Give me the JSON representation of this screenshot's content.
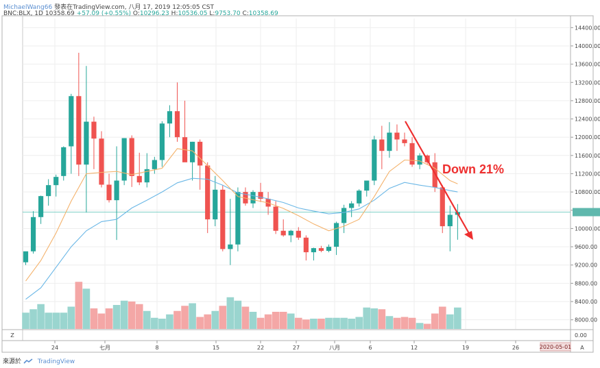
{
  "header": {
    "author": "MichaelWang66",
    "published": "發表在TradingView.com, 八月 17, 2019 12:05:05 CST",
    "symbol": "BNC:BLX, 1D",
    "last": "10358.69",
    "change": "+57.09 (+0.55%)",
    "ohlc": {
      "o_label": "O:",
      "o": "10296.23",
      "h_label": "H:",
      "h": "10536.05",
      "l_label": "L:",
      "l": "9753.70",
      "c_label": "C:",
      "c": "10358.69"
    }
  },
  "annotation": {
    "text": "Down 21%",
    "color": "#ee2f2f"
  },
  "footer": {
    "source_label": "來源於",
    "brand": "TradingView"
  },
  "axis": {
    "date_marker": "2020-05-01",
    "auto_button": "A",
    "zoom_button": "Z",
    "volume_zero": "0.00"
  },
  "colors": {
    "up": "#26a69a",
    "down": "#ef5350",
    "ma_fast": "#f4b26b",
    "ma_slow": "#6ab7e6",
    "price_line": "#7fd1c7"
  },
  "chart_data": {
    "type": "candlestick",
    "ylim": [
      7800,
      14600
    ],
    "y_ticks": [
      "8000.00",
      "8400.00",
      "8800.00",
      "9200.00",
      "9600.00",
      "10000.00",
      "10400.00",
      "10800.00",
      "11200.00",
      "11600.00",
      "12000.00",
      "12400.00",
      "12800.00",
      "13200.00",
      "13600.00",
      "14000.00",
      "14400.00"
    ],
    "x_ticks": [
      "24",
      "七月",
      "8",
      "15",
      "22",
      "27",
      "八月",
      "6",
      "12",
      "19",
      "26"
    ],
    "candles": [
      {
        "o": 9260,
        "h": 9460,
        "l": 9200,
        "c": 9500
      },
      {
        "o": 9500,
        "h": 10380,
        "l": 9450,
        "c": 10250
      },
      {
        "o": 10250,
        "h": 10720,
        "l": 10100,
        "c": 10710
      },
      {
        "o": 10710,
        "h": 11080,
        "l": 10500,
        "c": 10950
      },
      {
        "o": 10950,
        "h": 11180,
        "l": 10700,
        "c": 11130
      },
      {
        "o": 11150,
        "h": 11800,
        "l": 11050,
        "c": 11780
      },
      {
        "o": 11800,
        "h": 12950,
        "l": 11200,
        "c": 12900
      },
      {
        "o": 12900,
        "h": 13850,
        "l": 11150,
        "c": 11400
      },
      {
        "o": 11400,
        "h": 13560,
        "l": 10350,
        "c": 12340
      },
      {
        "o": 12340,
        "h": 12450,
        "l": 11300,
        "c": 11970
      },
      {
        "o": 11970,
        "h": 12130,
        "l": 10900,
        "c": 10960
      },
      {
        "o": 10960,
        "h": 11200,
        "l": 10570,
        "c": 10620
      },
      {
        "o": 10620,
        "h": 11800,
        "l": 9750,
        "c": 11050
      },
      {
        "o": 11050,
        "h": 11980,
        "l": 10950,
        "c": 11980
      },
      {
        "o": 11980,
        "h": 12040,
        "l": 10910,
        "c": 11150
      },
      {
        "o": 11150,
        "h": 11660,
        "l": 10950,
        "c": 11010
      },
      {
        "o": 11010,
        "h": 11650,
        "l": 10900,
        "c": 11300
      },
      {
        "o": 11300,
        "h": 11570,
        "l": 11200,
        "c": 11500
      },
      {
        "o": 11500,
        "h": 12350,
        "l": 11350,
        "c": 12300
      },
      {
        "o": 12300,
        "h": 12700,
        "l": 12000,
        "c": 12570
      },
      {
        "o": 12570,
        "h": 13200,
        "l": 11900,
        "c": 12000
      },
      {
        "o": 12000,
        "h": 12800,
        "l": 11500,
        "c": 11450
      },
      {
        "o": 11450,
        "h": 11900,
        "l": 11050,
        "c": 11900
      },
      {
        "o": 11900,
        "h": 11950,
        "l": 10850,
        "c": 11380
      },
      {
        "o": 11380,
        "h": 11450,
        "l": 9900,
        "c": 10200
      },
      {
        "o": 10200,
        "h": 11150,
        "l": 10050,
        "c": 10850
      },
      {
        "o": 10850,
        "h": 10950,
        "l": 9500,
        "c": 9550
      },
      {
        "o": 9550,
        "h": 10650,
        "l": 9200,
        "c": 9650
      },
      {
        "o": 9650,
        "h": 10900,
        "l": 9500,
        "c": 10800
      },
      {
        "o": 10800,
        "h": 10900,
        "l": 10500,
        "c": 10550
      },
      {
        "o": 10550,
        "h": 10840,
        "l": 10450,
        "c": 10800
      },
      {
        "o": 10800,
        "h": 11000,
        "l": 10580,
        "c": 10650
      },
      {
        "o": 10650,
        "h": 10800,
        "l": 10300,
        "c": 10480
      },
      {
        "o": 10480,
        "h": 10600,
        "l": 9880,
        "c": 9950
      },
      {
        "o": 9950,
        "h": 10200,
        "l": 9820,
        "c": 9850
      },
      {
        "o": 9850,
        "h": 9970,
        "l": 9700,
        "c": 9950
      },
      {
        "o": 9950,
        "h": 10030,
        "l": 9750,
        "c": 9800
      },
      {
        "o": 9800,
        "h": 9850,
        "l": 9300,
        "c": 9480
      },
      {
        "o": 9480,
        "h": 9580,
        "l": 9300,
        "c": 9570
      },
      {
        "o": 9570,
        "h": 9620,
        "l": 9480,
        "c": 9510
      },
      {
        "o": 9510,
        "h": 9650,
        "l": 9480,
        "c": 9600
      },
      {
        "o": 9600,
        "h": 10150,
        "l": 9420,
        "c": 10120
      },
      {
        "o": 10120,
        "h": 10520,
        "l": 9900,
        "c": 10450
      },
      {
        "o": 10450,
        "h": 10600,
        "l": 10250,
        "c": 10550
      },
      {
        "o": 10550,
        "h": 10860,
        "l": 10480,
        "c": 10830
      },
      {
        "o": 10830,
        "h": 11050,
        "l": 10700,
        "c": 11050
      },
      {
        "o": 11050,
        "h": 12030,
        "l": 10950,
        "c": 11950
      },
      {
        "o": 11950,
        "h": 12250,
        "l": 11300,
        "c": 11700
      },
      {
        "o": 11700,
        "h": 12330,
        "l": 11550,
        "c": 12100
      },
      {
        "o": 12100,
        "h": 12280,
        "l": 11700,
        "c": 11950
      },
      {
        "o": 11950,
        "h": 12100,
        "l": 11800,
        "c": 11870
      },
      {
        "o": 11870,
        "h": 12000,
        "l": 11350,
        "c": 11400
      },
      {
        "o": 11400,
        "h": 11650,
        "l": 11300,
        "c": 11600
      },
      {
        "o": 11600,
        "h": 11620,
        "l": 11400,
        "c": 11450
      },
      {
        "o": 11450,
        "h": 11650,
        "l": 10800,
        "c": 10900
      },
      {
        "o": 10900,
        "h": 10950,
        "l": 9900,
        "c": 10050
      },
      {
        "o": 10050,
        "h": 10500,
        "l": 9500,
        "c": 10300
      },
      {
        "o": 10300,
        "h": 10536,
        "l": 9754,
        "c": 10359
      }
    ],
    "volume_max": 1,
    "volumes": [
      0.19,
      0.23,
      0.29,
      0.19,
      0.19,
      0.19,
      0.26,
      0.55,
      0.47,
      0.24,
      0.18,
      0.24,
      0.28,
      0.33,
      0.32,
      0.29,
      0.21,
      0.13,
      0.12,
      0.17,
      0.21,
      0.27,
      0.3,
      0.14,
      0.17,
      0.21,
      0.27,
      0.37,
      0.33,
      0.26,
      0.2,
      0.13,
      0.17,
      0.2,
      0.2,
      0.18,
      0.13,
      0.11,
      0.12,
      0.12,
      0.13,
      0.13,
      0.13,
      0.12,
      0.14,
      0.25,
      0.24,
      0.23,
      0.15,
      0.13,
      0.14,
      0.13,
      0.07,
      0.06,
      0.18,
      0.26,
      0.17,
      0.25
    ],
    "ma_fast": [
      [
        0,
        8850
      ],
      [
        2,
        9300
      ],
      [
        4,
        9900
      ],
      [
        6,
        10600
      ],
      [
        8,
        11200
      ],
      [
        10,
        11230
      ],
      [
        12,
        11250
      ],
      [
        14,
        11180
      ],
      [
        16,
        11250
      ],
      [
        18,
        11320
      ],
      [
        20,
        11750
      ],
      [
        22,
        11700
      ],
      [
        24,
        11380
      ],
      [
        26,
        11050
      ],
      [
        28,
        10700
      ],
      [
        30,
        10630
      ],
      [
        32,
        10560
      ],
      [
        34,
        10440
      ],
      [
        36,
        10280
      ],
      [
        38,
        10100
      ],
      [
        40,
        9950
      ],
      [
        42,
        10050
      ],
      [
        44,
        10200
      ],
      [
        46,
        10700
      ],
      [
        48,
        11250
      ],
      [
        50,
        11500
      ],
      [
        52,
        11480
      ],
      [
        54,
        11320
      ],
      [
        56,
        11050
      ],
      [
        57,
        10980
      ]
    ],
    "ma_slow": [
      [
        0,
        8450
      ],
      [
        2,
        8700
      ],
      [
        4,
        9150
      ],
      [
        6,
        9600
      ],
      [
        8,
        9950
      ],
      [
        10,
        10150
      ],
      [
        12,
        10200
      ],
      [
        14,
        10450
      ],
      [
        16,
        10620
      ],
      [
        18,
        10800
      ],
      [
        20,
        11000
      ],
      [
        22,
        11100
      ],
      [
        24,
        11080
      ],
      [
        26,
        10950
      ],
      [
        28,
        10780
      ],
      [
        30,
        10720
      ],
      [
        32,
        10650
      ],
      [
        34,
        10570
      ],
      [
        36,
        10450
      ],
      [
        38,
        10380
      ],
      [
        40,
        10320
      ],
      [
        42,
        10350
      ],
      [
        44,
        10430
      ],
      [
        46,
        10620
      ],
      [
        48,
        10880
      ],
      [
        50,
        11010
      ],
      [
        52,
        10950
      ],
      [
        54,
        10900
      ],
      [
        56,
        10830
      ],
      [
        57,
        10800
      ]
    ],
    "price_line": 10359
  }
}
